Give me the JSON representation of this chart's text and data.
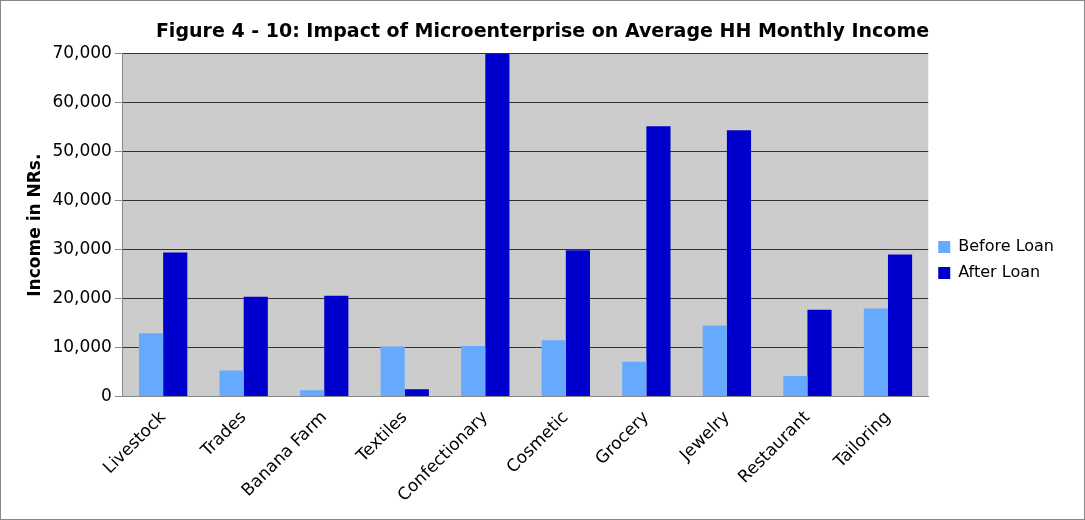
{
  "chart_data": {
    "type": "bar",
    "title": "Figure 4 - 10: Impact of Microenterprise on Average HH Monthly Income",
    "ylabel": "Income in NRs.",
    "categories": [
      "Livestock",
      "Trades",
      "Banana Farm",
      "Textiles",
      "Confectionary",
      "Cosmetic",
      "Grocery",
      "Jewelry",
      "Restaurant",
      "Tailoring"
    ],
    "series": [
      {
        "name": "Before Loan",
        "color": "#66aaff",
        "values": [
          12900,
          5300,
          1300,
          10200,
          10300,
          11500,
          7100,
          14500,
          4200,
          18000
        ]
      },
      {
        "name": "After Loan",
        "color": "#0000cc",
        "values": [
          29400,
          20400,
          20600,
          1500,
          70000,
          29900,
          55200,
          54400,
          17700,
          29000
        ]
      }
    ],
    "ylim": [
      0,
      70000
    ],
    "yticks": [
      0,
      {
        "value": 10000,
        "label": "10,000"
      },
      {
        "value": 20000,
        "label": "20,000"
      },
      {
        "value": 30000,
        "label": "30,000"
      },
      {
        "value": 40000,
        "label": "40,000"
      },
      {
        "value": 50000,
        "label": "50,000"
      },
      {
        "value": 60000,
        "label": "60,000"
      },
      {
        "value": 70000,
        "label": "70,000"
      }
    ],
    "grid": "y",
    "legend": "right"
  }
}
